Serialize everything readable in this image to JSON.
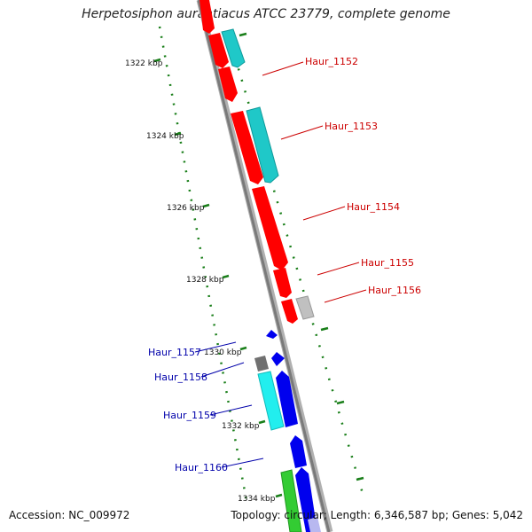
{
  "title": "Herpetosiphon aurantiacus ATCC 23779, complete genome",
  "footer": {
    "accession": "Accession: NC_009972",
    "summary": "Topology: circular; Length: 6,346,587 bp; Genes: 5,042"
  },
  "scale": {
    "unit": "kbp",
    "tick_labels": [
      "1322 kbp",
      "1324 kbp",
      "1326 kbp",
      "1328 kbp",
      "1330 kbp",
      "1332 kbp",
      "1334 kbp"
    ]
  },
  "colors": {
    "backbone": "#8c8c8c",
    "forward_label": "#cc0000",
    "reverse_label": "#0000aa",
    "tick": "#1a7f1a",
    "red_gene": "#ff0000",
    "cyan_gene": "#1fc8c8",
    "blue_gene": "#0000ee",
    "grey_gene": "#c0c0c0",
    "darkgrey_gene": "#707070",
    "green_gene": "#33cc33",
    "lightcyan_gene": "#22eeee",
    "lavender_gene": "#b8b8f0"
  },
  "gene_labels": {
    "haur_1152": "Haur_1152",
    "haur_1153": "Haur_1153",
    "haur_1154": "Haur_1154",
    "haur_1155": "Haur_1155",
    "haur_1156": "Haur_1156",
    "haur_1157": "Haur_1157",
    "haur_1158": "Haur_1158",
    "haur_1159": "Haur_1159",
    "haur_1160": "Haur_1160"
  }
}
